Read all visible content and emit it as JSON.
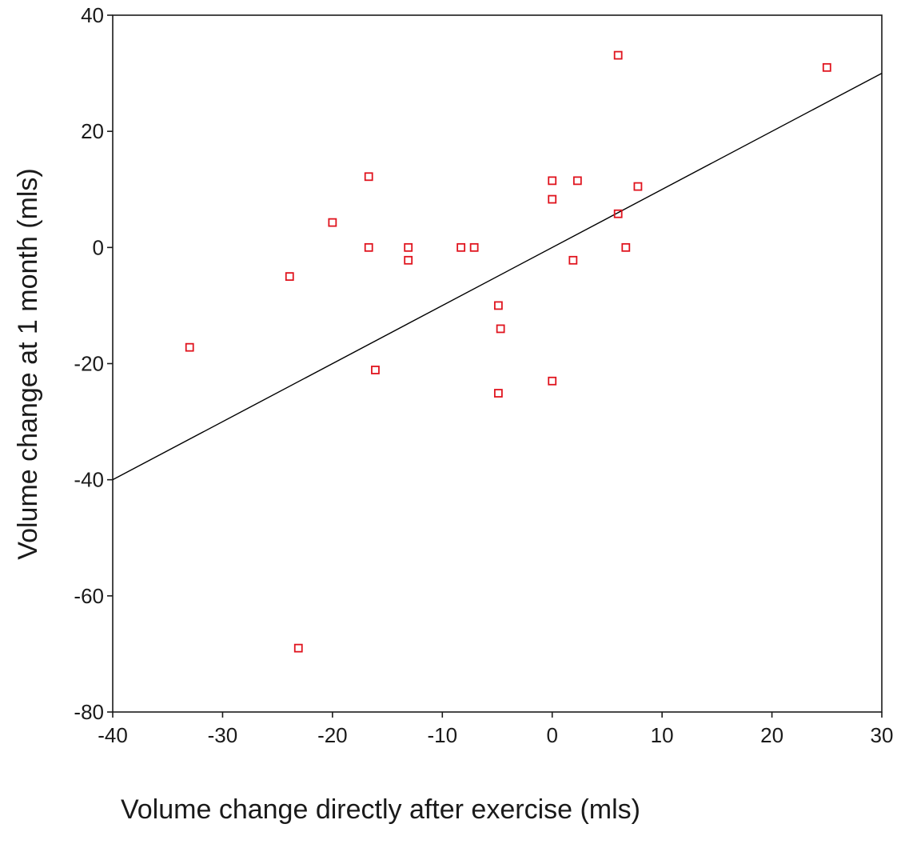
{
  "chart_data": {
    "type": "scatter",
    "title": "",
    "xlabel": "Volume change directly after exercise (mls)",
    "ylabel": "Volume change at 1 month (mls)",
    "xlim": [
      -40,
      30
    ],
    "ylim": [
      -80,
      40
    ],
    "xticks": [
      -40,
      -30,
      -20,
      -10,
      0,
      10,
      20,
      30
    ],
    "yticks": [
      -80,
      -60,
      -40,
      -20,
      0,
      20,
      40
    ],
    "grid": false,
    "reference_line": {
      "type": "identity",
      "slope": 1,
      "intercept": 0,
      "color": "#000000"
    },
    "marker": {
      "shape": "hollow-square",
      "color": "#e0141e"
    },
    "points": [
      {
        "x": 6.0,
        "y": 33.1
      },
      {
        "x": 25.0,
        "y": 31.0
      },
      {
        "x": -16.7,
        "y": 12.2
      },
      {
        "x": 0.0,
        "y": 11.5
      },
      {
        "x": 2.3,
        "y": 11.5
      },
      {
        "x": 7.8,
        "y": 10.5
      },
      {
        "x": 0.0,
        "y": 8.3
      },
      {
        "x": 6.0,
        "y": 5.8
      },
      {
        "x": -20.0,
        "y": 4.3
      },
      {
        "x": -16.7,
        "y": 0.0
      },
      {
        "x": -13.1,
        "y": 0.0
      },
      {
        "x": -8.3,
        "y": 0.0
      },
      {
        "x": -7.1,
        "y": 0.0
      },
      {
        "x": 6.7,
        "y": 0.0
      },
      {
        "x": -13.1,
        "y": -2.2
      },
      {
        "x": 1.9,
        "y": -2.2
      },
      {
        "x": -23.9,
        "y": -5.0
      },
      {
        "x": -4.9,
        "y": -10.0
      },
      {
        "x": -4.7,
        "y": -14.0
      },
      {
        "x": -33.0,
        "y": -17.2
      },
      {
        "x": -16.1,
        "y": -21.1
      },
      {
        "x": 0.0,
        "y": -23.0
      },
      {
        "x": -4.9,
        "y": -25.1
      },
      {
        "x": -23.1,
        "y": -69.0
      }
    ]
  }
}
